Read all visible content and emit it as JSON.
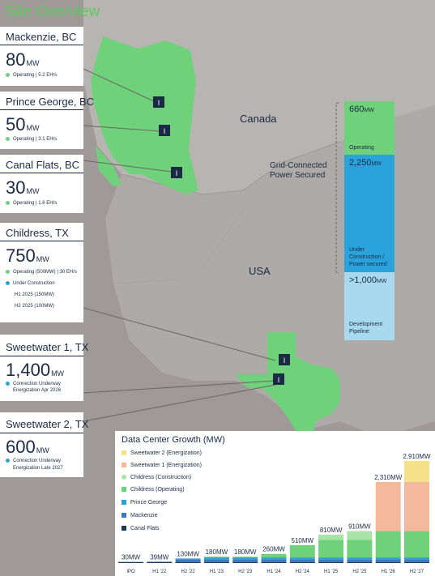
{
  "page": {
    "title": "Site Overview"
  },
  "map_labels": {
    "canada": "Canada",
    "usa": "USA"
  },
  "sites": [
    {
      "name": "Mackenzie, BC",
      "mw": "80",
      "unit": "MW",
      "status": "Operating | 5.2 EH/s"
    },
    {
      "name": "Prince George, BC",
      "mw": "50",
      "unit": "MW",
      "status": "Operating | 3.1 EH/s"
    },
    {
      "name": "Canal Flats, BC",
      "mw": "30",
      "unit": "MW",
      "status": "Operating | 1.6 EH/s"
    },
    {
      "name": "Childress, TX",
      "mw": "750",
      "unit": "MW",
      "status": "Operating (500MW) | 30 EH/s",
      "status2": "Under Construction",
      "sub1": "H1 2025 (150MW)",
      "sub2": "H2 2025 (100MW)"
    },
    {
      "name": "Sweetwater 1, TX",
      "mw": "1,400",
      "unit": "MW",
      "status": "Connection Underway",
      "status_line2": "Energization Apr 2026"
    },
    {
      "name": "Sweetwater 2, TX",
      "mw": "600",
      "unit": "MW",
      "status": "Connection Underway",
      "status_line2": "Energization Late 2027"
    }
  ],
  "grid": {
    "label_line1": "Grid-Connected",
    "label_line2": "Power Secured",
    "operating": {
      "value": "660",
      "unit": "MW",
      "label": "Operating"
    },
    "construction": {
      "value": "2,250",
      "unit": "MW",
      "label1": "Under",
      "label2": "Construction /",
      "label3": "Power secured"
    },
    "pipeline": {
      "value": ">1,000",
      "unit": "MW",
      "label1": "Development",
      "label2": "Pipeline"
    }
  },
  "colors": {
    "green": "#6fd27a",
    "blue": "#2aa3dc",
    "lightblue": "#a9d9ee",
    "navy": "#1a2a44",
    "title_green": "#5fc85f",
    "map_bg": "#9f9a98",
    "land": "#b8b4b2"
  },
  "chart_data": {
    "type": "bar",
    "title": "Data Center Growth (MW)",
    "categories": [
      "IPO",
      "H1 '22",
      "H2 '22",
      "H1 '23",
      "H2 '23",
      "H1 '24",
      "H2 '24",
      "H1 '25",
      "H2 '25",
      "H1 '26",
      "H2 '27"
    ],
    "totals": [
      30,
      39,
      130,
      180,
      180,
      260,
      510,
      810,
      910,
      2310,
      2910
    ],
    "total_labels": [
      "30MW",
      "39MW",
      "130MW",
      "180MW",
      "180MW",
      "260MW",
      "510MW",
      "810MW",
      "910MW",
      "2,310MW",
      "2,910MW"
    ],
    "series": [
      {
        "name": "Canal Flats",
        "color": "#1a3a5c",
        "values": [
          30,
          30,
          30,
          30,
          30,
          30,
          30,
          30,
          30,
          30,
          30
        ]
      },
      {
        "name": "Mackenzie",
        "color": "#3a78c2",
        "values": [
          0,
          9,
          80,
          80,
          80,
          80,
          80,
          80,
          80,
          80,
          80
        ]
      },
      {
        "name": "Prince George",
        "color": "#2aa3dc",
        "values": [
          0,
          0,
          20,
          50,
          50,
          50,
          50,
          50,
          50,
          50,
          50
        ]
      },
      {
        "name": "Childress (Operating)",
        "color": "#6fd27a",
        "values": [
          0,
          0,
          0,
          20,
          20,
          100,
          350,
          500,
          500,
          750,
          750
        ]
      },
      {
        "name": "Childress (Construction)",
        "color": "#a8e3a8",
        "values": [
          0,
          0,
          0,
          0,
          0,
          0,
          0,
          150,
          250,
          0,
          0
        ]
      },
      {
        "name": "Sweetwater 1 (Energization)",
        "color": "#f4b99a",
        "values": [
          0,
          0,
          0,
          0,
          0,
          0,
          0,
          0,
          0,
          1400,
          1400
        ]
      },
      {
        "name": "Sweetwater 2 (Energization)",
        "color": "#f6e08a",
        "values": [
          0,
          0,
          0,
          0,
          0,
          0,
          0,
          0,
          0,
          0,
          600
        ]
      }
    ],
    "legend_order": [
      "Sweetwater 2 (Energization)",
      "Sweetwater 1 (Energization)",
      "Childress (Construction)",
      "Childress (Operating)",
      "Prince George",
      "Mackenzie",
      "Canal Flats"
    ],
    "ylim": [
      0,
      3000
    ]
  }
}
